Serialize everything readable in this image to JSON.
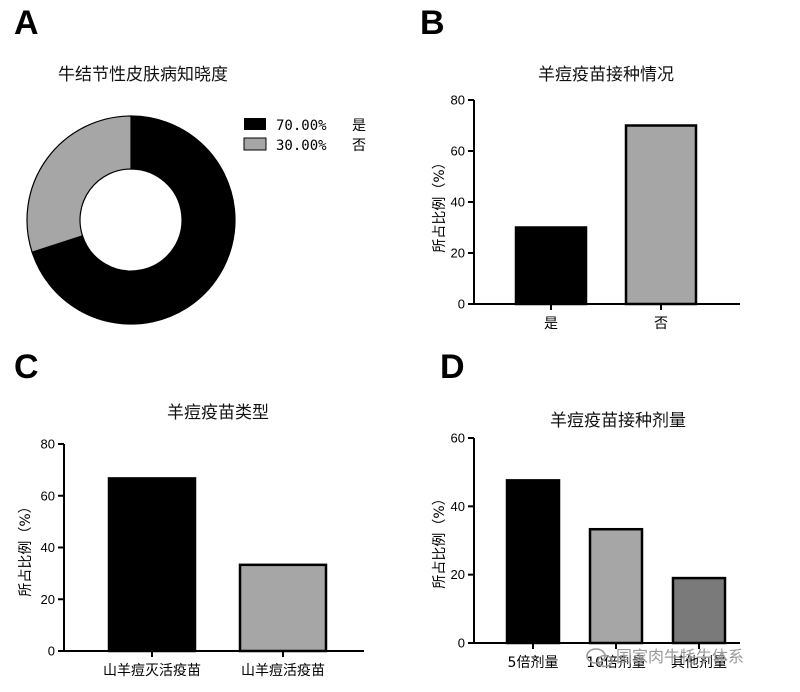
{
  "panels": {
    "a": "A",
    "b": "B",
    "c": "C",
    "d": "D"
  },
  "watermark": "国家肉牛牦牛体系",
  "chart_data": [
    {
      "type": "pie",
      "title": "牛结节性皮肤病知晓度",
      "slices": [
        {
          "label": "是",
          "value": 70.0,
          "legend_value": "70.00%",
          "color": "#000000"
        },
        {
          "label": "否",
          "value": 30.0,
          "legend_value": "30.00%",
          "color": "#a6a6a6"
        }
      ],
      "legend_position": "right"
    },
    {
      "type": "bar",
      "title": "羊痘疫苗接种情况",
      "ylabel": "所占比例（%）",
      "categories": [
        "是",
        "否"
      ],
      "values": [
        30,
        70
      ],
      "colors": [
        "#000000",
        "#a6a6a6"
      ],
      "ylim": [
        0,
        80
      ],
      "yticks": [
        0,
        20,
        40,
        60,
        80
      ]
    },
    {
      "type": "bar",
      "title": "羊痘疫苗类型",
      "ylabel": "所占比例（%）",
      "categories": [
        "山羊痘灭活疫苗",
        "山羊痘活疫苗"
      ],
      "values": [
        66.7,
        33.3
      ],
      "colors": [
        "#000000",
        "#a6a6a6"
      ],
      "ylim": [
        0,
        80
      ],
      "yticks": [
        0,
        20,
        40,
        60,
        80
      ]
    },
    {
      "type": "bar",
      "title": "羊痘疫苗接种剂量",
      "ylabel": "所占比例（%）",
      "categories": [
        "5倍剂量",
        "10倍剂量",
        "其他剂量"
      ],
      "values": [
        47.6,
        33.3,
        19.0
      ],
      "colors": [
        "#000000",
        "#a6a6a6",
        "#7a7a7a"
      ],
      "ylim": [
        0,
        60
      ],
      "yticks": [
        0,
        20,
        40,
        60
      ]
    }
  ]
}
